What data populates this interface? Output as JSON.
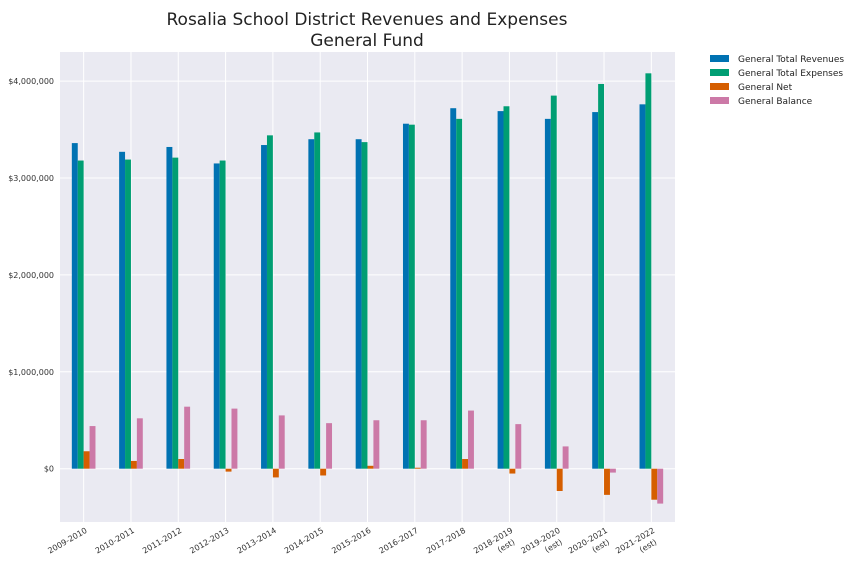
{
  "chart_data": {
    "type": "bar",
    "title": "Rosalia School District Revenues and Expenses",
    "subtitle": "General Fund",
    "categories": [
      [
        "2009-2010"
      ],
      [
        "2010-2011"
      ],
      [
        "2011-2012"
      ],
      [
        "2012-2013"
      ],
      [
        "2013-2014"
      ],
      [
        "2014-2015"
      ],
      [
        "2015-2016"
      ],
      [
        "2016-2017"
      ],
      [
        "2017-2018"
      ],
      [
        "2018-2019",
        "(est)"
      ],
      [
        "2019-2020",
        "(est)"
      ],
      [
        "2020-2021",
        "(est)"
      ],
      [
        "2021-2022",
        "(est)"
      ]
    ],
    "series": [
      {
        "name": "General Total Revenues",
        "color": "#0072b2",
        "values": [
          3360000,
          3270000,
          3320000,
          3150000,
          3340000,
          3400000,
          3400000,
          3560000,
          3720000,
          3690000,
          3610000,
          3680000,
          3760000
        ]
      },
      {
        "name": "General Total Expenses",
        "color": "#009e73",
        "values": [
          3180000,
          3190000,
          3210000,
          3180000,
          3440000,
          3470000,
          3370000,
          3550000,
          3610000,
          3740000,
          3850000,
          3970000,
          4080000
        ]
      },
      {
        "name": "General Net",
        "color": "#d55e00",
        "values": [
          180000,
          80000,
          100000,
          -30000,
          -90000,
          -70000,
          30000,
          10000,
          100000,
          -50000,
          -230000,
          -270000,
          -320000
        ]
      },
      {
        "name": "General Balance",
        "color": "#cc79a7",
        "values": [
          440000,
          520000,
          640000,
          620000,
          550000,
          470000,
          500000,
          500000,
          600000,
          460000,
          230000,
          -40000,
          -360000
        ]
      }
    ],
    "ylim": [
      -550000,
      4300000
    ],
    "yticks": [
      0,
      1000000,
      2000000,
      3000000,
      4000000
    ],
    "ytick_labels": [
      "$0",
      "$1,000,000",
      "$2,000,000",
      "$3,000,000",
      "$4,000,000"
    ],
    "grid": true,
    "background": "#eaeaf2",
    "legend_position": "outside-top-right"
  }
}
